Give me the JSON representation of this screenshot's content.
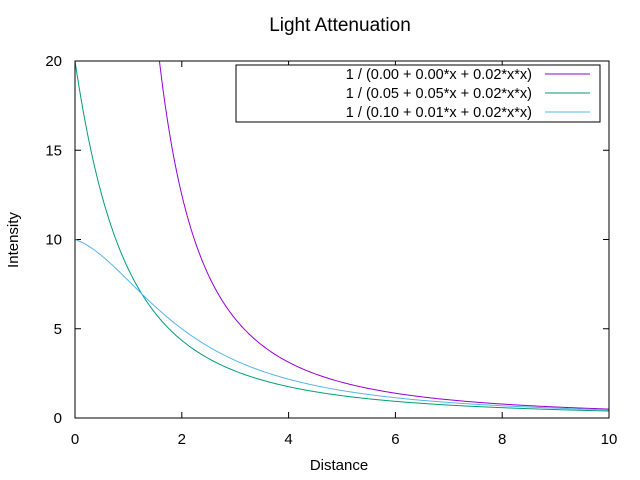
{
  "chart_data": {
    "type": "line",
    "title": "Light Attenuation",
    "xlabel": "Distance",
    "ylabel": "Intensity",
    "xlim": [
      0,
      10
    ],
    "ylim": [
      0,
      20
    ],
    "xticks": [
      0,
      2,
      4,
      6,
      8,
      10
    ],
    "yticks": [
      0,
      5,
      10,
      15,
      20
    ],
    "grid": false,
    "legend_position": "top-right",
    "series": [
      {
        "name": "1 / (0.00 + 0.00*x + 0.02*x*x)",
        "color": "#9400d3",
        "constant": 0.0,
        "linear": 0.0,
        "quadratic": 0.02
      },
      {
        "name": "1 / (0.05 + 0.05*x + 0.02*x*x)",
        "color": "#009e73",
        "constant": 0.05,
        "linear": 0.05,
        "quadratic": 0.02
      },
      {
        "name": "1 / (0.10 + 0.01*x + 0.02*x*x)",
        "color": "#56b4e9",
        "constant": 0.1,
        "linear": 0.01,
        "quadratic": 0.02
      }
    ]
  }
}
